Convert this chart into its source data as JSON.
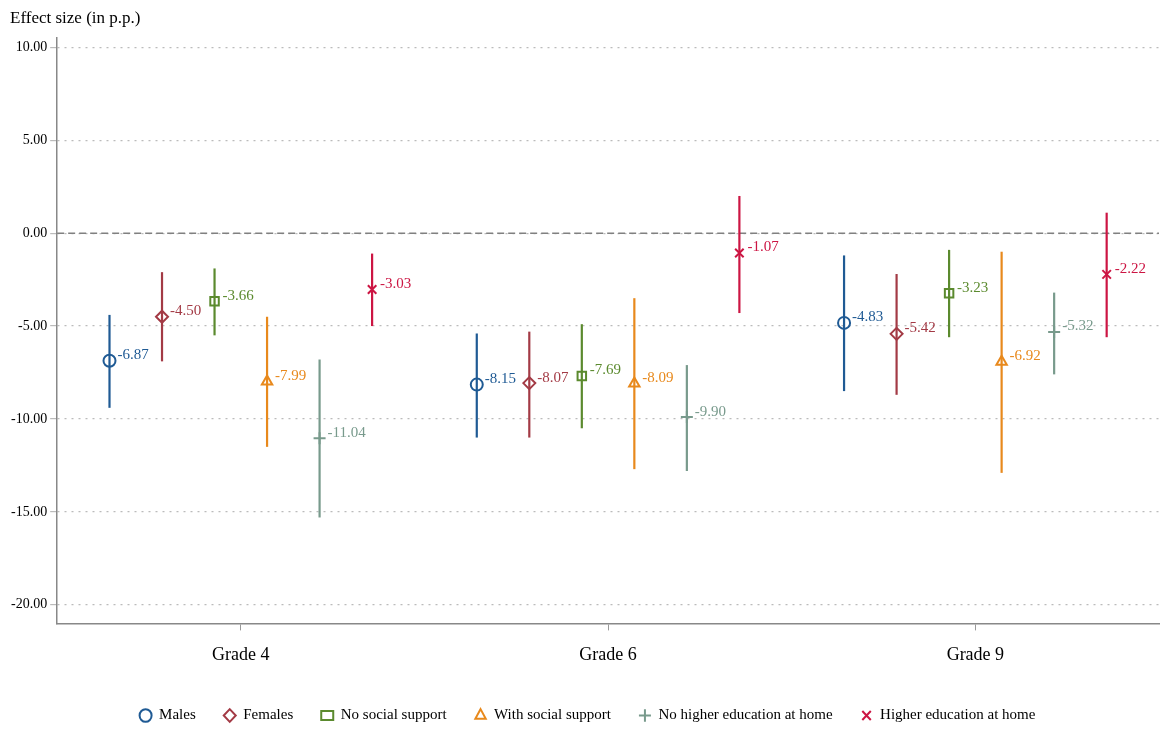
{
  "chart_data": {
    "type": "scatter",
    "ylabel": "Effect size (in p.p.)",
    "categories": [
      "Grade 4",
      "Grade 6",
      "Grade 9"
    ],
    "ylim": [
      -21,
      10.5
    ],
    "yticks": [
      {
        "value": 10,
        "label": "10.00"
      },
      {
        "value": 5,
        "label": "5.00"
      },
      {
        "value": 0,
        "label": "0.00"
      },
      {
        "value": -5,
        "label": "-5.00"
      },
      {
        "value": -10,
        "label": "-10.00"
      },
      {
        "value": -15,
        "label": "-15.00"
      },
      {
        "value": -20,
        "label": "-20.00"
      }
    ],
    "grid": "y",
    "legend": "bottom",
    "ref_lines": [
      {
        "axis": "y",
        "value": 0,
        "color": "#808080",
        "line_style": "dashed"
      }
    ],
    "series": [
      {
        "name": "Males",
        "color": "#1f5a94",
        "marker": "circle",
        "values": [
          -6.87,
          -8.15,
          -4.83
        ],
        "value_labels": [
          "-6.87",
          "-8.15",
          "-4.83"
        ],
        "errors": [
          [
            -9.4,
            -4.4
          ],
          [
            -11.0,
            -5.4
          ],
          [
            -8.5,
            -1.2
          ]
        ]
      },
      {
        "name": "Females",
        "color": "#a33a45",
        "marker": "diamond",
        "values": [
          -4.5,
          -8.07,
          -5.42
        ],
        "value_labels": [
          "-4.50",
          "-8.07",
          "-5.42"
        ],
        "errors": [
          [
            -6.9,
            -2.1
          ],
          [
            -11.0,
            -5.3
          ],
          [
            -8.7,
            -2.2
          ]
        ]
      },
      {
        "name": "No social support",
        "color": "#5b8a2e",
        "marker": "square",
        "values": [
          -3.66,
          -7.69,
          -3.23
        ],
        "value_labels": [
          "-3.66",
          "-7.69",
          "-3.23"
        ],
        "errors": [
          [
            -5.5,
            -1.9
          ],
          [
            -10.5,
            -4.9
          ],
          [
            -5.6,
            -0.9
          ]
        ]
      },
      {
        "name": "With social support",
        "color": "#e8891c",
        "marker": "triangle",
        "values": [
          -7.99,
          -8.09,
          -6.92
        ],
        "value_labels": [
          "-7.99",
          "-8.09",
          "-6.92"
        ],
        "errors": [
          [
            -11.5,
            -4.5
          ],
          [
            -12.7,
            -3.5
          ],
          [
            -12.9,
            -1.0
          ]
        ]
      },
      {
        "name": "No higher education at home",
        "color": "#789a8c",
        "marker": "cross",
        "values": [
          -11.04,
          -9.9,
          -5.32
        ],
        "value_labels": [
          "-11.04",
          "-9.90",
          "-5.32"
        ],
        "errors": [
          [
            -15.3,
            -6.8
          ],
          [
            -12.8,
            -7.1
          ],
          [
            -7.6,
            -3.2
          ]
        ]
      },
      {
        "name": "Higher education at home",
        "color": "#cc1543",
        "marker": "x",
        "values": [
          -3.03,
          -1.07,
          -2.22
        ],
        "value_labels": [
          "-3.03",
          "-1.07",
          "-2.22"
        ],
        "errors": [
          [
            -5.0,
            -1.1
          ],
          [
            -4.3,
            2.0
          ],
          [
            -5.6,
            1.1
          ]
        ]
      }
    ]
  }
}
